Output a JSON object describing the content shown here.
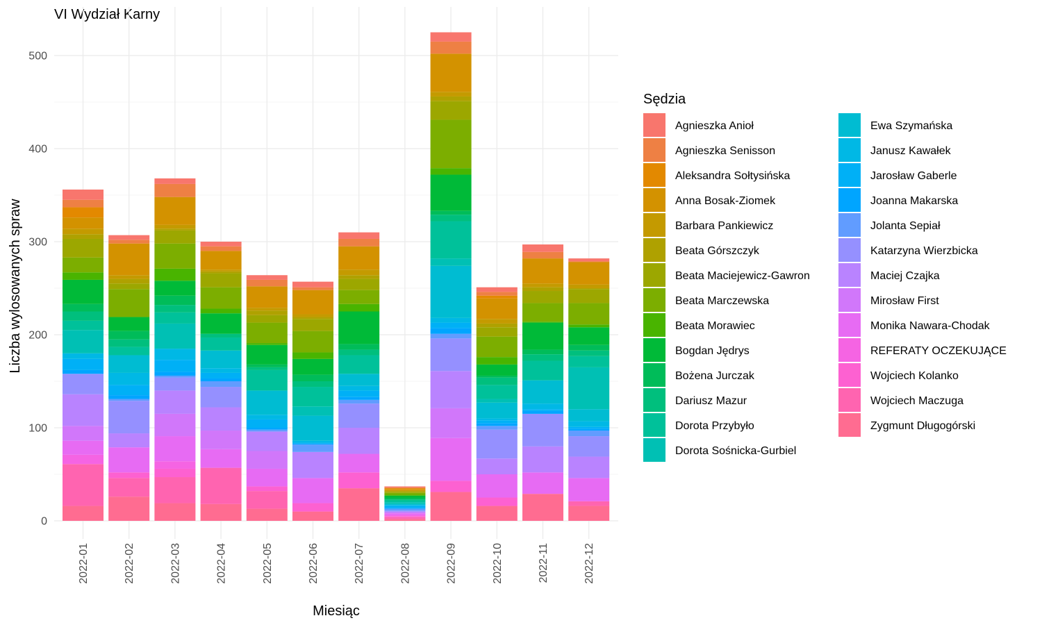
{
  "chart_data": {
    "type": "bar",
    "stacked": true,
    "title": "VI Wydział Karny",
    "xlabel": "Miesiąc",
    "ylabel": "Liczba wylosowanych spraw",
    "ylim": [
      0,
      535
    ],
    "yticks": [
      0,
      100,
      200,
      300,
      400,
      500
    ],
    "grid": true,
    "legend_title": "Sędzia",
    "legend_position": "right",
    "categories": [
      "2022-01",
      "2022-02",
      "2022-03",
      "2022-04",
      "2022-05",
      "2022-06",
      "2022-07",
      "2022-08",
      "2022-09",
      "2022-10",
      "2022-11",
      "2022-12"
    ],
    "series": [
      {
        "name": "Agnieszka Anioł",
        "color": "#F8766D",
        "values": [
          11,
          5,
          6,
          5,
          5,
          6,
          7,
          1,
          10,
          5,
          8,
          3
        ]
      },
      {
        "name": "Agnieszka Senisson",
        "color": "#EE8044",
        "values": [
          8,
          4,
          14,
          5,
          7,
          3,
          8,
          1,
          13,
          4,
          7,
          1
        ]
      },
      {
        "name": "Aleksandra Sołtysińska",
        "color": "#E38900",
        "values": [
          11,
          0,
          0,
          0,
          0,
          0,
          0,
          1,
          0,
          3,
          0,
          0
        ]
      },
      {
        "name": "Anna Bosak-Ziomek",
        "color": "#D39200",
        "values": [
          12,
          34,
          30,
          20,
          23,
          26,
          25,
          1,
          41,
          22,
          27,
          24
        ]
      },
      {
        "name": "Barbara Pankiewicz",
        "color": "#C49A00",
        "values": [
          6,
          4,
          4,
          2,
          3,
          3,
          6,
          1,
          5,
          5,
          4,
          4
        ]
      },
      {
        "name": "Beata Górszczyk",
        "color": "#AFA100",
        "values": [
          5,
          5,
          2,
          2,
          5,
          2,
          4,
          1,
          5,
          4,
          4,
          1
        ]
      },
      {
        "name": "Beata Maciejewicz-Gawron",
        "color": "#9CA700",
        "values": [
          20,
          6,
          14,
          15,
          8,
          13,
          12,
          1,
          20,
          10,
          13,
          15
        ]
      },
      {
        "name": "Beata Marczewska",
        "color": "#7CAE00",
        "values": [
          16,
          30,
          27,
          23,
          22,
          23,
          15,
          2,
          52,
          22,
          20,
          23
        ]
      },
      {
        "name": "Beata Morawiec",
        "color": "#49B400",
        "values": [
          8,
          0,
          13,
          5,
          2,
          7,
          8,
          1,
          7,
          8,
          1,
          3
        ]
      },
      {
        "name": "Bogdan Jędrys",
        "color": "#00BA38",
        "values": [
          26,
          15,
          16,
          22,
          21,
          17,
          35,
          2,
          39,
          12,
          29,
          19
        ]
      },
      {
        "name": "Bożena Jurczak",
        "color": "#00BC59",
        "values": [
          8,
          9,
          10,
          0,
          3,
          7,
          6,
          2,
          4,
          2,
          5,
          6
        ]
      },
      {
        "name": "Dariusz Mazur",
        "color": "#00BF7D",
        "values": [
          10,
          8,
          8,
          4,
          3,
          6,
          6,
          1,
          7,
          8,
          7,
          6
        ]
      },
      {
        "name": "Dorota Przybyło",
        "color": "#00C19A",
        "values": [
          10,
          9,
          12,
          14,
          22,
          21,
          20,
          2,
          40,
          15,
          21,
          12
        ]
      },
      {
        "name": "Dorota Sośnicka-Gurbiel",
        "color": "#00C0B4",
        "values": [
          25,
          0,
          27,
          0,
          0,
          10,
          0,
          2,
          8,
          4,
          0,
          45
        ]
      },
      {
        "name": "Ewa Szymańska",
        "color": "#00BCD2",
        "values": [
          0,
          19,
          0,
          19,
          26,
          27,
          13,
          1,
          56,
          17,
          25,
          13
        ]
      },
      {
        "name": "Janusz Kawałek",
        "color": "#00B8E5",
        "values": [
          6,
          13,
          12,
          5,
          5,
          2,
          5,
          1,
          5,
          2,
          6,
          6
        ]
      },
      {
        "name": "Jarosław Gaberle",
        "color": "#00B0F6",
        "values": [
          12,
          11,
          13,
          6,
          9,
          1,
          7,
          2,
          6,
          3,
          2,
          2
        ]
      },
      {
        "name": "Joanna Makarska",
        "color": "#00A5FF",
        "values": [
          4,
          4,
          4,
          3,
          2,
          1,
          3,
          1,
          6,
          3,
          3,
          2
        ]
      },
      {
        "name": "Jolanta Sepiał",
        "color": "#619CFF",
        "values": [
          0,
          2,
          2,
          6,
          2,
          8,
          4,
          2,
          5,
          4,
          0,
          6
        ]
      },
      {
        "name": "Katarzyna Wierzbicka",
        "color": "#9590FF",
        "values": [
          22,
          35,
          14,
          22,
          0,
          0,
          26,
          1,
          35,
          31,
          35,
          22
        ]
      },
      {
        "name": "Maciej Czajka",
        "color": "#B983FF",
        "values": [
          34,
          15,
          25,
          25,
          21,
          28,
          28,
          1,
          40,
          17,
          28,
          23
        ]
      },
      {
        "name": "Mirosław First",
        "color": "#D177FA",
        "values": [
          16,
          0,
          24,
          20,
          19,
          0,
          0,
          1,
          32,
          0,
          0,
          0
        ]
      },
      {
        "name": "Monika Nawara-Chodak",
        "color": "#E76BF3",
        "values": [
          15,
          27,
          27,
          20,
          19,
          27,
          20,
          2,
          46,
          25,
          23,
          25
        ]
      },
      {
        "name": "REFERATY OCZEKUJĄCE",
        "color": "#F564E3",
        "values": [
          10,
          0,
          8,
          0,
          0,
          0,
          0,
          1,
          0,
          0,
          0,
          0
        ]
      },
      {
        "name": "Wojciech Kolanko",
        "color": "#FD61D1",
        "values": [
          0,
          6,
          9,
          0,
          5,
          9,
          17,
          1,
          12,
          9,
          0,
          0
        ]
      },
      {
        "name": "Wojciech Maczuga",
        "color": "#FF64B0",
        "values": [
          45,
          20,
          28,
          39,
          19,
          0,
          0,
          2,
          0,
          0,
          0,
          5
        ]
      },
      {
        "name": "Zygmunt Długogórski",
        "color": "#FF6C91",
        "values": [
          16,
          26,
          19,
          18,
          13,
          10,
          35,
          2,
          31,
          16,
          29,
          16
        ]
      }
    ]
  }
}
